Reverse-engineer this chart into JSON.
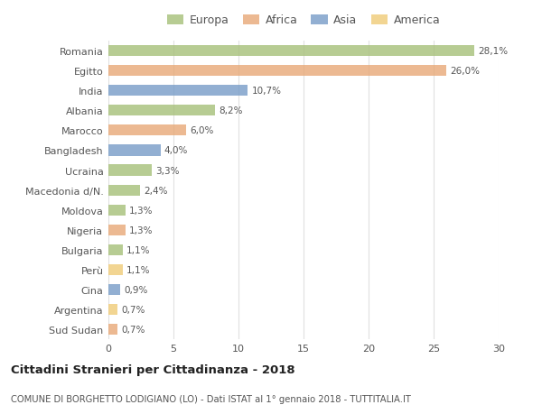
{
  "countries": [
    "Romania",
    "Egitto",
    "India",
    "Albania",
    "Marocco",
    "Bangladesh",
    "Ucraina",
    "Macedonia d/N.",
    "Moldova",
    "Nigeria",
    "Bulgaria",
    "Perù",
    "Cina",
    "Argentina",
    "Sud Sudan"
  ],
  "values": [
    28.1,
    26.0,
    10.7,
    8.2,
    6.0,
    4.0,
    3.3,
    2.4,
    1.3,
    1.3,
    1.1,
    1.1,
    0.9,
    0.7,
    0.7
  ],
  "labels": [
    "28,1%",
    "26,0%",
    "10,7%",
    "8,2%",
    "6,0%",
    "4,0%",
    "3,3%",
    "2,4%",
    "1,3%",
    "1,3%",
    "1,1%",
    "1,1%",
    "0,9%",
    "0,7%",
    "0,7%"
  ],
  "continents": [
    "Europa",
    "Africa",
    "Asia",
    "Europa",
    "Africa",
    "Asia",
    "Europa",
    "Europa",
    "Europa",
    "Africa",
    "Europa",
    "America",
    "Asia",
    "America",
    "Africa"
  ],
  "colors": {
    "Europa": "#a8c17c",
    "Africa": "#e8aa7a",
    "Asia": "#7a9ec9",
    "America": "#f0cc7a"
  },
  "legend_order": [
    "Europa",
    "Africa",
    "Asia",
    "America"
  ],
  "title": "Cittadini Stranieri per Cittadinanza - 2018",
  "subtitle": "COMUNE DI BORGHETTO LODIGIANO (LO) - Dati ISTAT al 1° gennaio 2018 - TUTTITALIA.IT",
  "xlim": [
    0,
    30
  ],
  "xticks": [
    0,
    5,
    10,
    15,
    20,
    25,
    30
  ],
  "background_color": "#ffffff",
  "grid_color": "#e0e0e0",
  "bar_height": 0.55,
  "bar_alpha": 0.82
}
